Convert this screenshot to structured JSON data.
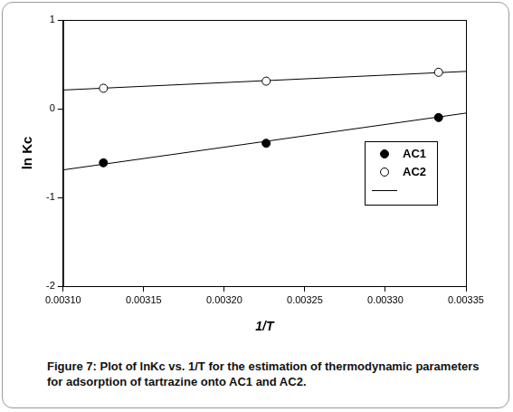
{
  "chart_data": {
    "type": "scatter",
    "caption": "Figure 7: Plot of lnKc vs. 1/T for the estimation of thermodynamic parameters for adsorption of tartrazine onto AC1 and AC2.",
    "x_label": "1/T",
    "y_label": "ln Kc",
    "xlim": [
      0.0031,
      0.00335
    ],
    "xticks": [
      {
        "value": 0.0031,
        "label": "0.00310"
      },
      {
        "value": 0.00315,
        "label": "0.00315"
      },
      {
        "value": 0.0032,
        "label": "0.00320"
      },
      {
        "value": 0.00325,
        "label": "0.00325"
      },
      {
        "value": 0.0033,
        "label": "0.00330"
      },
      {
        "value": 0.00335,
        "label": "0.00335"
      }
    ],
    "ylim": [
      -2,
      1
    ],
    "yticks": [
      -2,
      -1,
      0,
      1
    ],
    "grid": false,
    "legend": "lower right",
    "series": [
      {
        "name": "AC1",
        "color": "#000000",
        "marker": "circle",
        "x": [
          0.003125,
          0.003226,
          0.003333
        ],
        "values": [
          -0.61,
          -0.39,
          -0.1
        ],
        "fit": [
          -0.69,
          -0.05
        ]
      },
      {
        "name": "AC2",
        "color": "#000000",
        "marker": "open_circle",
        "x": [
          0.003125,
          0.003226,
          0.003333
        ],
        "values": [
          0.23,
          0.31,
          0.41
        ],
        "fit": [
          0.21,
          0.42
        ]
      }
    ]
  }
}
